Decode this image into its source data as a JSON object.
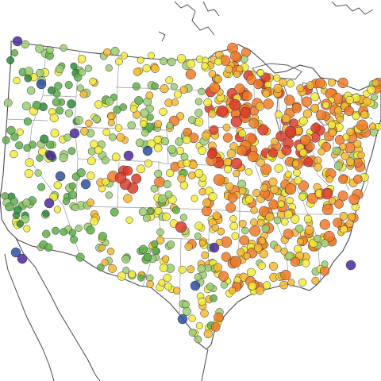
{
  "map": {
    "region": "contiguous-united-states",
    "projection": "lambert-conformal-conic",
    "colors": {
      "background": "#ffffff",
      "country_outline": "#555555",
      "state_borders": "#8a8a8a",
      "marker_edge": "#333333",
      "marker_fill_levels": [
        "#4b2a9a",
        "#2e4fa0",
        "#2e8a3c",
        "#5fb04a",
        "#9ccd72",
        "#f2ec3c",
        "#f5b831",
        "#f07a28",
        "#dc3c2a"
      ]
    },
    "marker_shape": "circle",
    "marker_opacity": 0.85,
    "visible_text": []
  }
}
